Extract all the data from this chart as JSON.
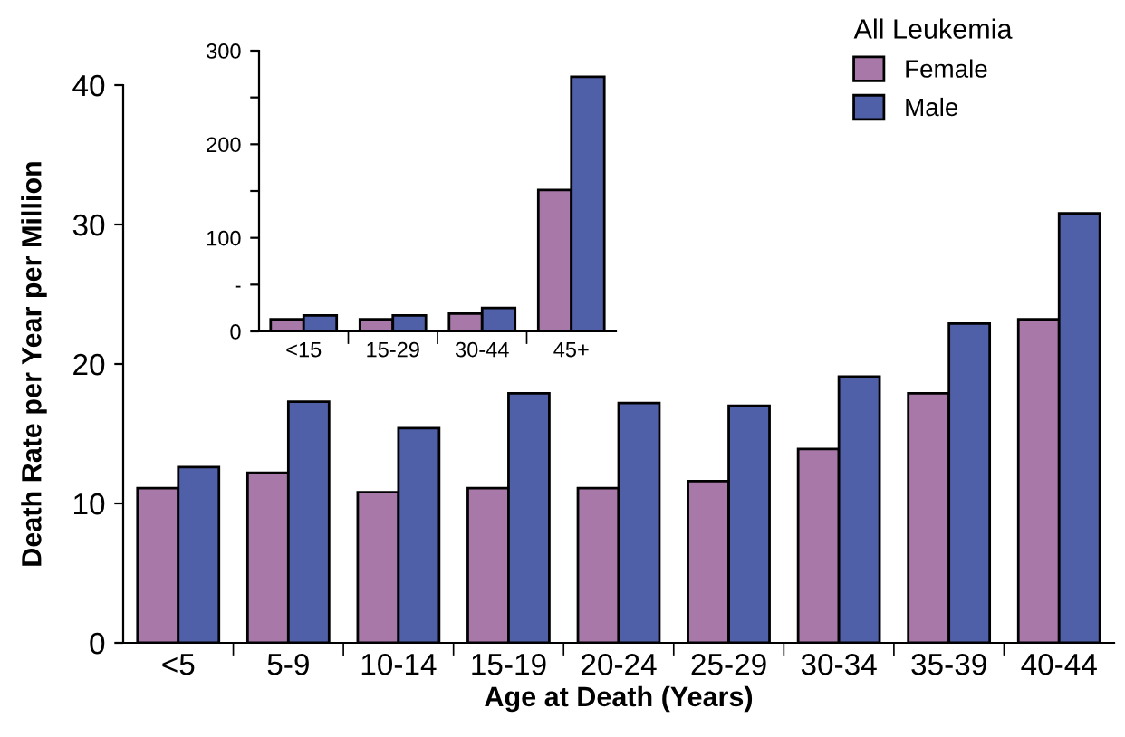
{
  "chart_data": [
    {
      "type": "bar",
      "xlabel": "Age at Death (Years)",
      "ylabel": "Death Rate per Year per Million",
      "legend_title": "All Leukemia",
      "legend": "top right",
      "grid": false,
      "categories": [
        "<5",
        "5-9",
        "10-14",
        "15-19",
        "20-24",
        "25-29",
        "30-34",
        "35-39",
        "40-44"
      ],
      "series": [
        {
          "name": "Female",
          "color": "#a878a8",
          "values": [
            11.1,
            12.2,
            10.8,
            11.1,
            11.1,
            11.6,
            13.9,
            17.9,
            23.2
          ]
        },
        {
          "name": "Male",
          "color": "#4f5fa8",
          "values": [
            12.6,
            17.3,
            15.4,
            17.9,
            17.2,
            17.0,
            19.1,
            22.9,
            30.8
          ]
        }
      ],
      "ylim": [
        0,
        40
      ],
      "yticks": [
        0,
        10,
        20,
        30,
        40
      ]
    },
    {
      "type": "bar",
      "grid": false,
      "categories": [
        "<15",
        "15-29",
        "30-44",
        "45+"
      ],
      "series": [
        {
          "color": "#a878a8",
          "values": [
            13,
            13,
            19,
            151
          ]
        },
        {
          "color": "#4f5fa8",
          "values": [
            17,
            17,
            25,
            272
          ]
        }
      ],
      "ylim": [
        0,
        300
      ],
      "yticks": [
        0,
        {
          "value": 50,
          "label": "-"
        },
        100,
        {
          "value": 150,
          "label": null
        },
        200,
        {
          "value": 250,
          "label": null
        },
        300
      ]
    }
  ]
}
